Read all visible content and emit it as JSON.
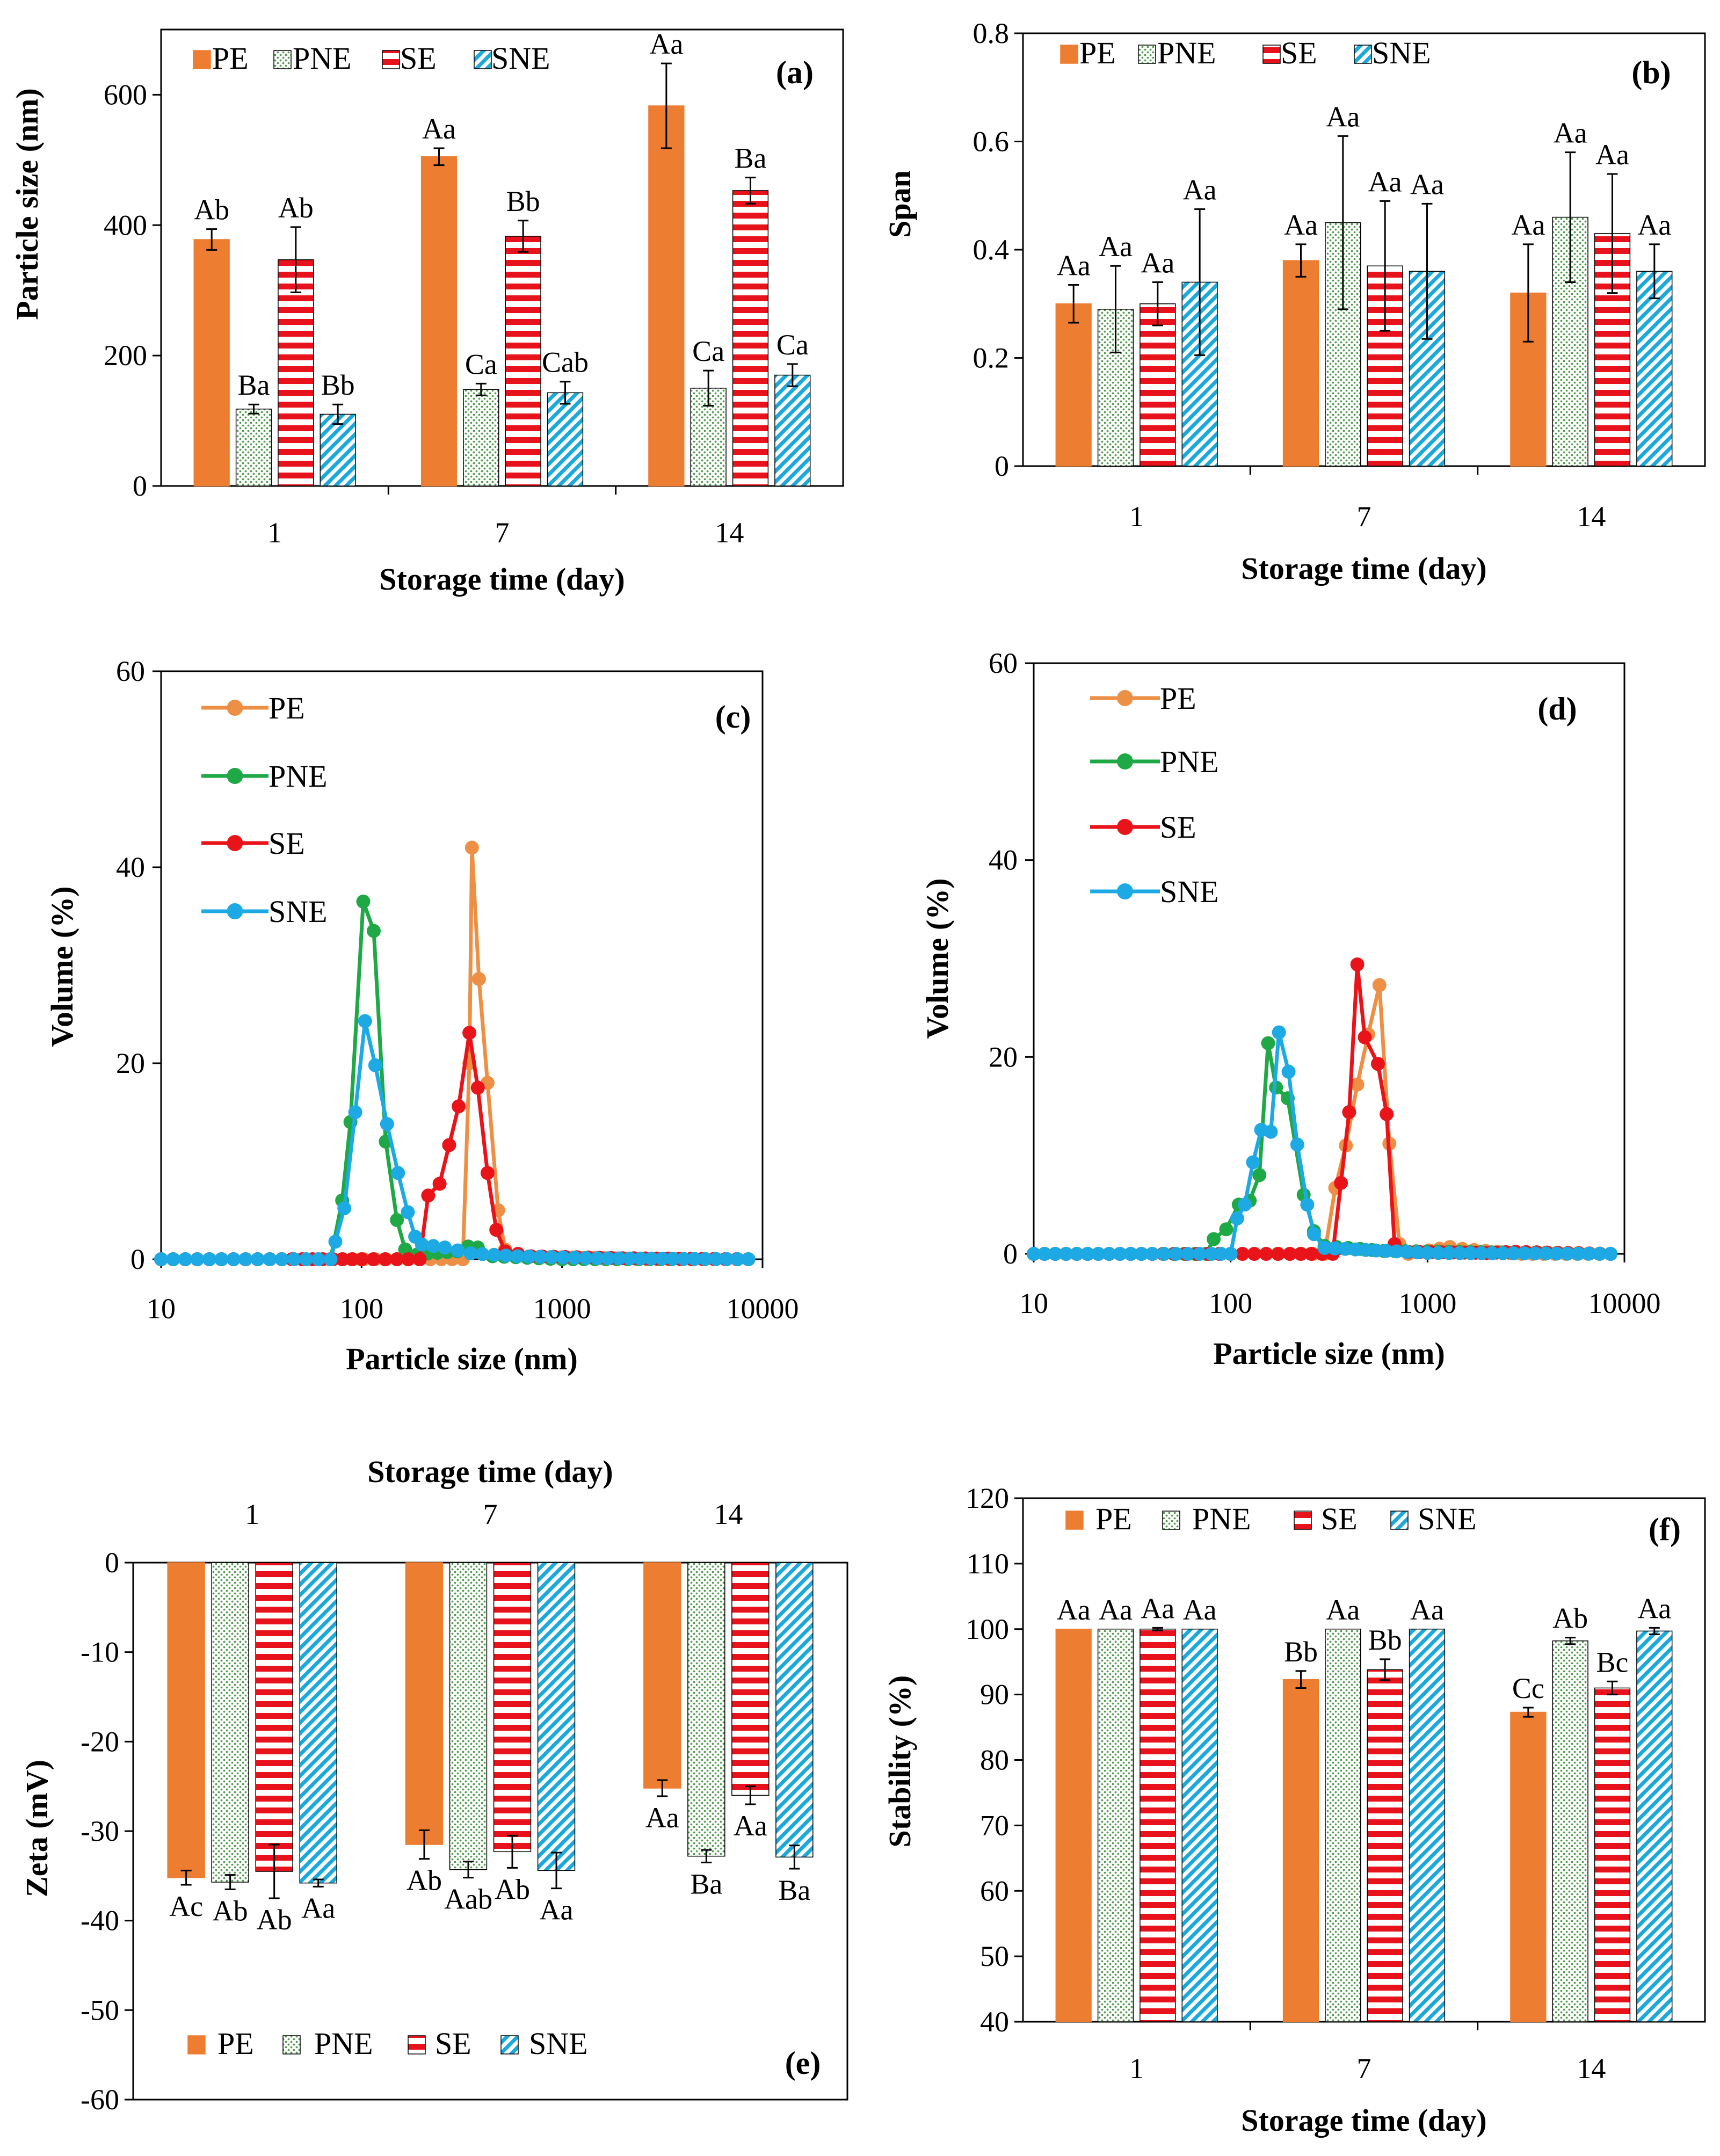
{
  "colors": {
    "PE": "#ED7D31",
    "PNE": "#4E9A4A",
    "SE": "#E8121C",
    "SNE": "#1BA9DB",
    "PE_line": "#ED8F45",
    "PNE_line": "#1EA846",
    "SE_line": "#E8141A",
    "SNE_line": "#1DAAE4"
  },
  "chart_data": [
    {
      "id": "a",
      "type": "bar",
      "panel_label": "(a)",
      "xlabel": "Storage time (day)",
      "ylabel": "Particle size (nm)",
      "categories": [
        "1",
        "7",
        "14"
      ],
      "ylim": [
        0,
        700
      ],
      "yticks": [
        "0",
        "200",
        "400",
        "600"
      ],
      "ytick_values": [
        0,
        200,
        400,
        600
      ],
      "legend": [
        "PE",
        "PNE",
        "SE",
        "SNE"
      ],
      "series": [
        {
          "name": "PE",
          "values": [
            378,
            505,
            583
          ],
          "errors": [
            16,
            13,
            65
          ],
          "labels": [
            "Ab",
            "Aa",
            "Aa"
          ]
        },
        {
          "name": "PNE",
          "values": [
            118,
            148,
            150
          ],
          "errors": [
            7,
            9,
            27
          ],
          "labels": [
            "Ba",
            "Ca",
            "Ca"
          ]
        },
        {
          "name": "SE",
          "values": [
            347,
            383,
            453
          ],
          "errors": [
            50,
            24,
            20
          ],
          "labels": [
            "Ab",
            "Bb",
            "Ba"
          ]
        },
        {
          "name": "SNE",
          "values": [
            110,
            143,
            170
          ],
          "errors": [
            15,
            17,
            17
          ],
          "labels": [
            "Bb",
            "Cab",
            "Ca"
          ]
        }
      ]
    },
    {
      "id": "b",
      "type": "bar",
      "panel_label": "(b)",
      "xlabel": "Storage time (day)",
      "ylabel": "Span",
      "categories": [
        "1",
        "7",
        "14"
      ],
      "ylim": [
        0,
        0.8
      ],
      "yticks": [
        "0",
        "0.2",
        "0.4",
        "0.6",
        "0.8"
      ],
      "ytick_values": [
        0,
        0.2,
        0.4,
        0.6,
        0.8
      ],
      "legend": [
        "PE",
        "PNE",
        "SE",
        "SNE"
      ],
      "series": [
        {
          "name": "PE",
          "values": [
            0.3,
            0.38,
            0.32
          ],
          "errors": [
            0.035,
            0.03,
            0.09
          ],
          "labels": [
            "Aa",
            "Aa",
            "Aa"
          ]
        },
        {
          "name": "PNE",
          "values": [
            0.29,
            0.45,
            0.46
          ],
          "errors": [
            0.08,
            0.16,
            0.12
          ],
          "labels": [
            "Aa",
            "Aa",
            "Aa"
          ]
        },
        {
          "name": "SE",
          "values": [
            0.3,
            0.37,
            0.43
          ],
          "errors": [
            0.04,
            0.12,
            0.11
          ],
          "labels": [
            "Aa",
            "Aa",
            "Aa"
          ]
        },
        {
          "name": "SNE",
          "values": [
            0.34,
            0.36,
            0.36
          ],
          "errors": [
            0.135,
            0.125,
            0.05
          ],
          "labels": [
            "Aa",
            "Aa",
            "Aa"
          ]
        }
      ]
    },
    {
      "id": "c",
      "type": "line",
      "panel_label": "(c)",
      "xlabel": "Particle size (nm)",
      "ylabel": "Volume (%)",
      "xscale": "log",
      "xlim": [
        10,
        10000
      ],
      "xticks": [
        "10",
        "100",
        "1000",
        "10000"
      ],
      "xtick_values": [
        10,
        100,
        1000,
        10000
      ],
      "ylim": [
        0,
        60
      ],
      "yticks": [
        "0",
        "20",
        "40",
        "60"
      ],
      "ytick_values": [
        0,
        20,
        40,
        60
      ],
      "legend": [
        "PE",
        "PNE",
        "SE",
        "SNE"
      ],
      "series": [
        {
          "name": "PE",
          "points": [
            [
              10,
              0
            ],
            [
              20,
              0
            ],
            [
              40,
              0
            ],
            [
              80,
              0
            ],
            [
              150,
              0
            ],
            [
              250,
              0
            ],
            [
              320,
              0
            ],
            [
              345,
              20
            ],
            [
              355,
              42
            ],
            [
              385,
              28.6
            ],
            [
              425,
              18
            ],
            [
              480,
              5
            ],
            [
              520,
              1
            ],
            [
              600,
              0.3
            ],
            [
              1000,
              0.2
            ],
            [
              3000,
              0
            ],
            [
              8500,
              0
            ]
          ]
        },
        {
          "name": "PNE",
          "points": [
            [
              10,
              0
            ],
            [
              20,
              0
            ],
            [
              40,
              0
            ],
            [
              70,
              0
            ],
            [
              80,
              6
            ],
            [
              88,
              14
            ],
            [
              102,
              36.5
            ],
            [
              115,
              33.5
            ],
            [
              132,
              12
            ],
            [
              150,
              4
            ],
            [
              165,
              1
            ],
            [
              190,
              0.5
            ],
            [
              300,
              0.8
            ],
            [
              340,
              1.3
            ],
            [
              380,
              1.2
            ],
            [
              450,
              0.3
            ],
            [
              1000,
              0
            ],
            [
              8500,
              0
            ]
          ]
        },
        {
          "name": "SE",
          "points": [
            [
              10,
              0
            ],
            [
              20,
              0
            ],
            [
              40,
              0
            ],
            [
              72,
              0
            ],
            [
              100,
              0
            ],
            [
              150,
              0
            ],
            [
              195,
              0
            ],
            [
              215,
              6.5
            ],
            [
              245,
              7.7
            ],
            [
              305,
              15.6
            ],
            [
              345,
              23.1
            ],
            [
              380,
              17.5
            ],
            [
              425,
              8.8
            ],
            [
              470,
              3
            ],
            [
              520,
              0.8
            ],
            [
              700,
              0.3
            ],
            [
              2000,
              0.1
            ],
            [
              8500,
              0
            ]
          ]
        },
        {
          "name": "SNE",
          "points": [
            [
              10,
              0
            ],
            [
              20,
              0
            ],
            [
              40,
              0
            ],
            [
              70,
              0
            ],
            [
              74,
              1.8
            ],
            [
              82,
              5.2
            ],
            [
              93,
              15
            ],
            [
              104,
              24.3
            ],
            [
              117,
              19.8
            ],
            [
              134,
              13.8
            ],
            [
              152,
              8.8
            ],
            [
              170,
              4.8
            ],
            [
              185,
              2.3
            ],
            [
              200,
              1.5
            ],
            [
              260,
              1.2
            ],
            [
              350,
              0.6
            ],
            [
              600,
              0.3
            ],
            [
              1500,
              0.1
            ],
            [
              8500,
              0
            ]
          ]
        }
      ]
    },
    {
      "id": "d",
      "type": "line",
      "panel_label": "(d)",
      "xlabel": "Particle size (nm)",
      "ylabel": "Volume (%)",
      "xscale": "log",
      "xlim": [
        10,
        10000
      ],
      "xticks": [
        "10",
        "100",
        "1000",
        "10000"
      ],
      "xtick_values": [
        10,
        100,
        1000,
        10000
      ],
      "ylim": [
        0,
        60
      ],
      "yticks": [
        "0",
        "20",
        "40",
        "60"
      ],
      "ytick_values": [
        0,
        20,
        40,
        60
      ],
      "legend": [
        "PE",
        "PNE",
        "SE",
        "SNE"
      ],
      "series": [
        {
          "name": "PE",
          "points": [
            [
              10,
              0
            ],
            [
              40,
              0
            ],
            [
              100,
              0
            ],
            [
              200,
              0
            ],
            [
              300,
              0
            ],
            [
              340,
              6.7
            ],
            [
              385,
              11
            ],
            [
              440,
              17.2
            ],
            [
              500,
              22.3
            ],
            [
              570,
              27.3
            ],
            [
              640,
              11.2
            ],
            [
              720,
              1
            ],
            [
              800,
              0
            ],
            [
              1300,
              0.7
            ],
            [
              1500,
              0.5
            ],
            [
              3000,
              0
            ],
            [
              8500,
              0
            ]
          ]
        },
        {
          "name": "PNE",
          "points": [
            [
              10,
              0
            ],
            [
              40,
              0
            ],
            [
              75,
              0
            ],
            [
              82,
              1.5
            ],
            [
              95,
              2.5
            ],
            [
              110,
              5
            ],
            [
              125,
              5.4
            ],
            [
              140,
              8
            ],
            [
              155,
              21.4
            ],
            [
              170,
              16.9
            ],
            [
              195,
              15.8
            ],
            [
              235,
              6
            ],
            [
              265,
              2.3
            ],
            [
              300,
              0.8
            ],
            [
              600,
              0.3
            ],
            [
              8500,
              0
            ]
          ]
        },
        {
          "name": "SE",
          "points": [
            [
              10,
              0
            ],
            [
              40,
              0
            ],
            [
              100,
              0
            ],
            [
              200,
              0
            ],
            [
              330,
              0
            ],
            [
              400,
              14.4
            ],
            [
              440,
              29.4
            ],
            [
              480,
              22
            ],
            [
              560,
              19.3
            ],
            [
              620,
              14.2
            ],
            [
              680,
              1
            ],
            [
              800,
              0.2
            ],
            [
              2000,
              0.1
            ],
            [
              2800,
              0.2
            ],
            [
              8500,
              0
            ]
          ]
        },
        {
          "name": "SNE",
          "points": [
            [
              10,
              0
            ],
            [
              40,
              0
            ],
            [
              80,
              0
            ],
            [
              100,
              0
            ],
            [
              108,
              3.6
            ],
            [
              118,
              5
            ],
            [
              130,
              9.3
            ],
            [
              143,
              12.6
            ],
            [
              160,
              12.4
            ],
            [
              176,
              22.5
            ],
            [
              197,
              18.5
            ],
            [
              218,
              11.1
            ],
            [
              245,
              5
            ],
            [
              265,
              2
            ],
            [
              300,
              0.6
            ],
            [
              1000,
              0.1
            ],
            [
              8500,
              0
            ]
          ]
        }
      ]
    },
    {
      "id": "e",
      "type": "bar",
      "panel_label": "(e)",
      "xlabel": "Storage time (day)",
      "ylabel": "Zeta (mV)",
      "categories": [
        "1",
        "7",
        "14"
      ],
      "ylim": [
        -60,
        0
      ],
      "yticks": [
        "0",
        "-10",
        "-20",
        "-30",
        "-40",
        "-50",
        "-60"
      ],
      "ytick_values": [
        0,
        -10,
        -20,
        -30,
        -40,
        -50,
        -60
      ],
      "legend": [
        "PE",
        "PNE",
        "SE",
        "SNE"
      ],
      "series": [
        {
          "name": "PE",
          "values": [
            -35.2,
            -31.5,
            -25.2
          ],
          "errors": [
            0.8,
            1.6,
            0.9
          ],
          "labels": [
            "Ac",
            "Ab",
            "Aa"
          ]
        },
        {
          "name": "PNE",
          "values": [
            -35.7,
            -34.3,
            -32.8
          ],
          "errors": [
            0.8,
            0.9,
            0.7
          ],
          "labels": [
            "Ab",
            "Aab",
            "Ba"
          ]
        },
        {
          "name": "SE",
          "values": [
            -34.5,
            -32.3,
            -26.0
          ],
          "errors": [
            3.0,
            1.8,
            1.0
          ],
          "labels": [
            "Ab",
            "Ab",
            "Aa"
          ]
        },
        {
          "name": "SNE",
          "values": [
            -35.8,
            -34.4,
            -32.9
          ],
          "errors": [
            0.4,
            2.0,
            1.3
          ],
          "labels": [
            "Aa",
            "Aa",
            "Ba"
          ]
        }
      ]
    },
    {
      "id": "f",
      "type": "bar",
      "panel_label": "(f)",
      "xlabel": "Storage time (day)",
      "ylabel": "Stability (%)",
      "categories": [
        "1",
        "7",
        "14"
      ],
      "ylim": [
        40,
        120
      ],
      "yticks": [
        "40",
        "50",
        "60",
        "70",
        "80",
        "90",
        "100",
        "110",
        "120"
      ],
      "ytick_values": [
        40,
        50,
        60,
        70,
        80,
        90,
        100,
        110,
        120
      ],
      "legend": [
        "PE",
        "PNE",
        "SE",
        "SNE"
      ],
      "series": [
        {
          "name": "PE",
          "values": [
            100,
            92.3,
            87.3
          ],
          "errors": [
            0,
            1.3,
            0.7
          ],
          "labels": [
            "Aa",
            "Bb",
            "Cc"
          ]
        },
        {
          "name": "PNE",
          "values": [
            100,
            100,
            98.2
          ],
          "errors": [
            0,
            0,
            0.5
          ],
          "labels": [
            "Aa",
            "Aa",
            "Ab"
          ]
        },
        {
          "name": "SE",
          "values": [
            100,
            93.8,
            91.0
          ],
          "errors": [
            0.2,
            1.6,
            1.0
          ],
          "labels": [
            "Aa",
            "Bb",
            "Bc"
          ]
        },
        {
          "name": "SNE",
          "values": [
            100,
            100,
            99.7
          ],
          "errors": [
            0,
            0,
            0.5
          ],
          "labels": [
            "Aa",
            "Aa",
            "Aa"
          ]
        }
      ]
    }
  ]
}
